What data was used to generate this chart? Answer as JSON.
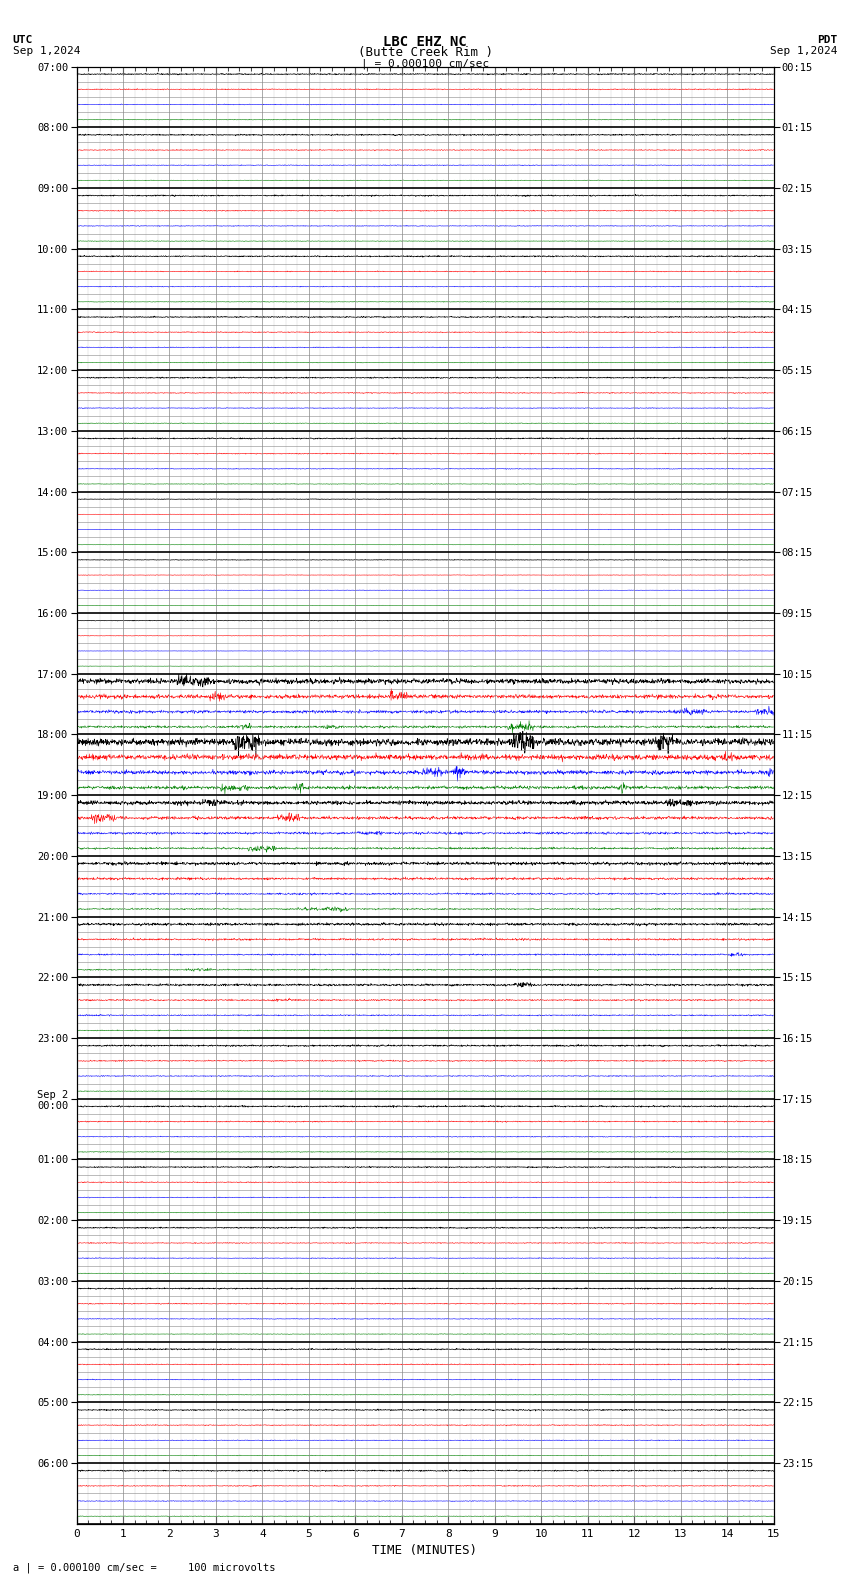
{
  "title_line1": "LBC EHZ NC",
  "title_line2": "(Butte Creek Rim )",
  "scale_label": "| = 0.000100 cm/sec",
  "utc_label": "UTC",
  "utc_date": "Sep 1,2024",
  "pdt_label": "PDT",
  "pdt_date": "Sep 1,2024",
  "bottom_label": "a | = 0.000100 cm/sec =     100 microvolts",
  "xlabel": "TIME (MINUTES)",
  "xlim": [
    0,
    15
  ],
  "xticks": [
    0,
    1,
    2,
    3,
    4,
    5,
    6,
    7,
    8,
    9,
    10,
    11,
    12,
    13,
    14,
    15
  ],
  "left_times": [
    "07:00",
    "08:00",
    "09:00",
    "10:00",
    "11:00",
    "12:00",
    "13:00",
    "14:00",
    "15:00",
    "16:00",
    "17:00",
    "18:00",
    "19:00",
    "20:00",
    "21:00",
    "22:00",
    "23:00",
    "Sep 2\n00:00",
    "01:00",
    "02:00",
    "03:00",
    "04:00",
    "05:00",
    "06:00"
  ],
  "right_times": [
    "00:15",
    "01:15",
    "02:15",
    "03:15",
    "04:15",
    "05:15",
    "06:15",
    "07:15",
    "08:15",
    "09:15",
    "10:15",
    "11:15",
    "12:15",
    "13:15",
    "14:15",
    "15:15",
    "16:15",
    "17:15",
    "18:15",
    "19:15",
    "20:15",
    "21:15",
    "22:15",
    "23:15"
  ],
  "n_rows": 24,
  "traces_per_row": 4,
  "colors": [
    "black",
    "red",
    "blue",
    "green"
  ],
  "background": "white",
  "grid_major_color": "#888888",
  "grid_minor_color": "#cccccc",
  "noise_seed": 42,
  "row_amplitudes": [
    0.06,
    0.06,
    0.06,
    0.06,
    0.06,
    0.06,
    0.06,
    0.03,
    0.03,
    0.03,
    0.25,
    0.35,
    0.2,
    0.15,
    0.12,
    0.1,
    0.08,
    0.07,
    0.06,
    0.06,
    0.06,
    0.06,
    0.06,
    0.06
  ],
  "trace_amplitudes": [
    1.0,
    0.8,
    0.6,
    0.5
  ]
}
